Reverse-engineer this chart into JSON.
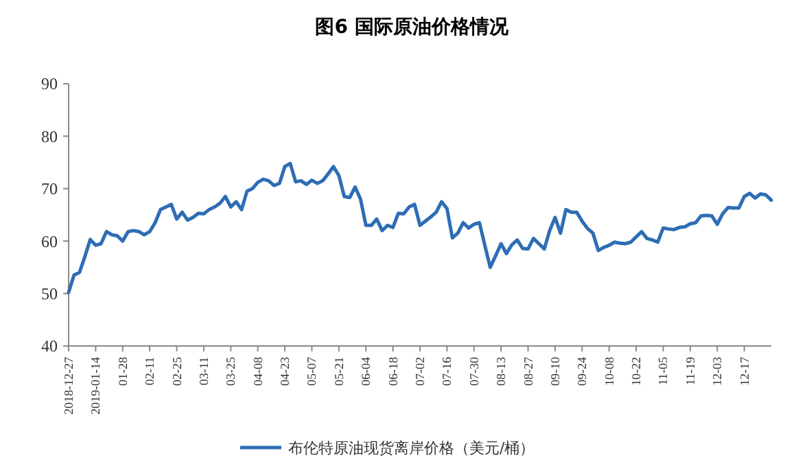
{
  "chart_data": {
    "type": "line",
    "title": "图6 国际原油价格情况",
    "categories": [
      "2018-12-27",
      null,
      null,
      null,
      null,
      "2019-01-14",
      null,
      null,
      null,
      null,
      "01-28",
      null,
      null,
      null,
      null,
      "02-11",
      null,
      null,
      null,
      null,
      "02-25",
      null,
      null,
      null,
      null,
      "03-11",
      null,
      null,
      null,
      null,
      "03-25",
      null,
      null,
      null,
      null,
      "04-08",
      null,
      null,
      null,
      null,
      "04-23",
      null,
      null,
      null,
      null,
      "05-07",
      null,
      null,
      null,
      null,
      "05-21",
      null,
      null,
      null,
      null,
      "06-04",
      null,
      null,
      null,
      null,
      "06-18",
      null,
      null,
      null,
      null,
      "07-02",
      null,
      null,
      null,
      null,
      "07-16",
      null,
      null,
      null,
      null,
      "07-30",
      null,
      null,
      null,
      null,
      "08-13",
      null,
      null,
      null,
      null,
      "08-27",
      null,
      null,
      null,
      null,
      "09-10",
      null,
      null,
      null,
      null,
      "09-24",
      null,
      null,
      null,
      null,
      "10-08",
      null,
      null,
      null,
      null,
      "10-22",
      null,
      null,
      null,
      null,
      "11-05",
      null,
      null,
      null,
      null,
      "11-19",
      null,
      null,
      null,
      null,
      "12-03",
      null,
      null,
      null,
      null,
      "12-17",
      null,
      null,
      null,
      null,
      null
    ],
    "series": [
      {
        "name": "布伦特原油现货离岸价格（美元/桶）",
        "color": "#2e6db4",
        "values": [
          50.2,
          53.5,
          54,
          57,
          60.3,
          59.2,
          59.5,
          61.8,
          61.2,
          61,
          60,
          61.8,
          62,
          61.8,
          61.2,
          61.8,
          63.5,
          66,
          66.5,
          67,
          64.2,
          65.5,
          64,
          64.5,
          65.3,
          65.2,
          66,
          66.5,
          67.2,
          68.5,
          66.5,
          67.5,
          66,
          69.5,
          70,
          71.2,
          71.8,
          71.5,
          70.6,
          71,
          74.2,
          74.8,
          71.3,
          71.5,
          70.8,
          71.6,
          71,
          71.5,
          72.8,
          74.2,
          72.5,
          68.5,
          68.3,
          70.3,
          68,
          63,
          63,
          64.2,
          62,
          63,
          62.6,
          65.3,
          65.2,
          66.5,
          67,
          63,
          63.8,
          64.6,
          65.5,
          67.5,
          66.2,
          60.6,
          61.5,
          63.5,
          62.5,
          63.2,
          63.5,
          59.2,
          55,
          57.2,
          59.5,
          57.6,
          59.3,
          60.2,
          58.6,
          58.5,
          60.5,
          59.5,
          58.5,
          62,
          64.5,
          61.5,
          66,
          65.5,
          65.5,
          63.8,
          62.4,
          61.5,
          58.2,
          58.8,
          59.2,
          59.8,
          59.6,
          59.5,
          59.8,
          60.8,
          61.8,
          60.5,
          60.2,
          59.8,
          62.5,
          62.3,
          62.2,
          62.6,
          62.7,
          63.3,
          63.5,
          64.8,
          64.9,
          64.8,
          63.2,
          65.2,
          66.4,
          66.3,
          66.3,
          68.5,
          69.1,
          68.2,
          69,
          68.8,
          67.8
        ]
      }
    ],
    "ylim": [
      40,
      90
    ],
    "yticks": [
      40,
      50,
      60,
      70,
      80,
      90
    ],
    "grid": false,
    "legend": "bottom",
    "marker": "none",
    "line_style": "solid"
  }
}
